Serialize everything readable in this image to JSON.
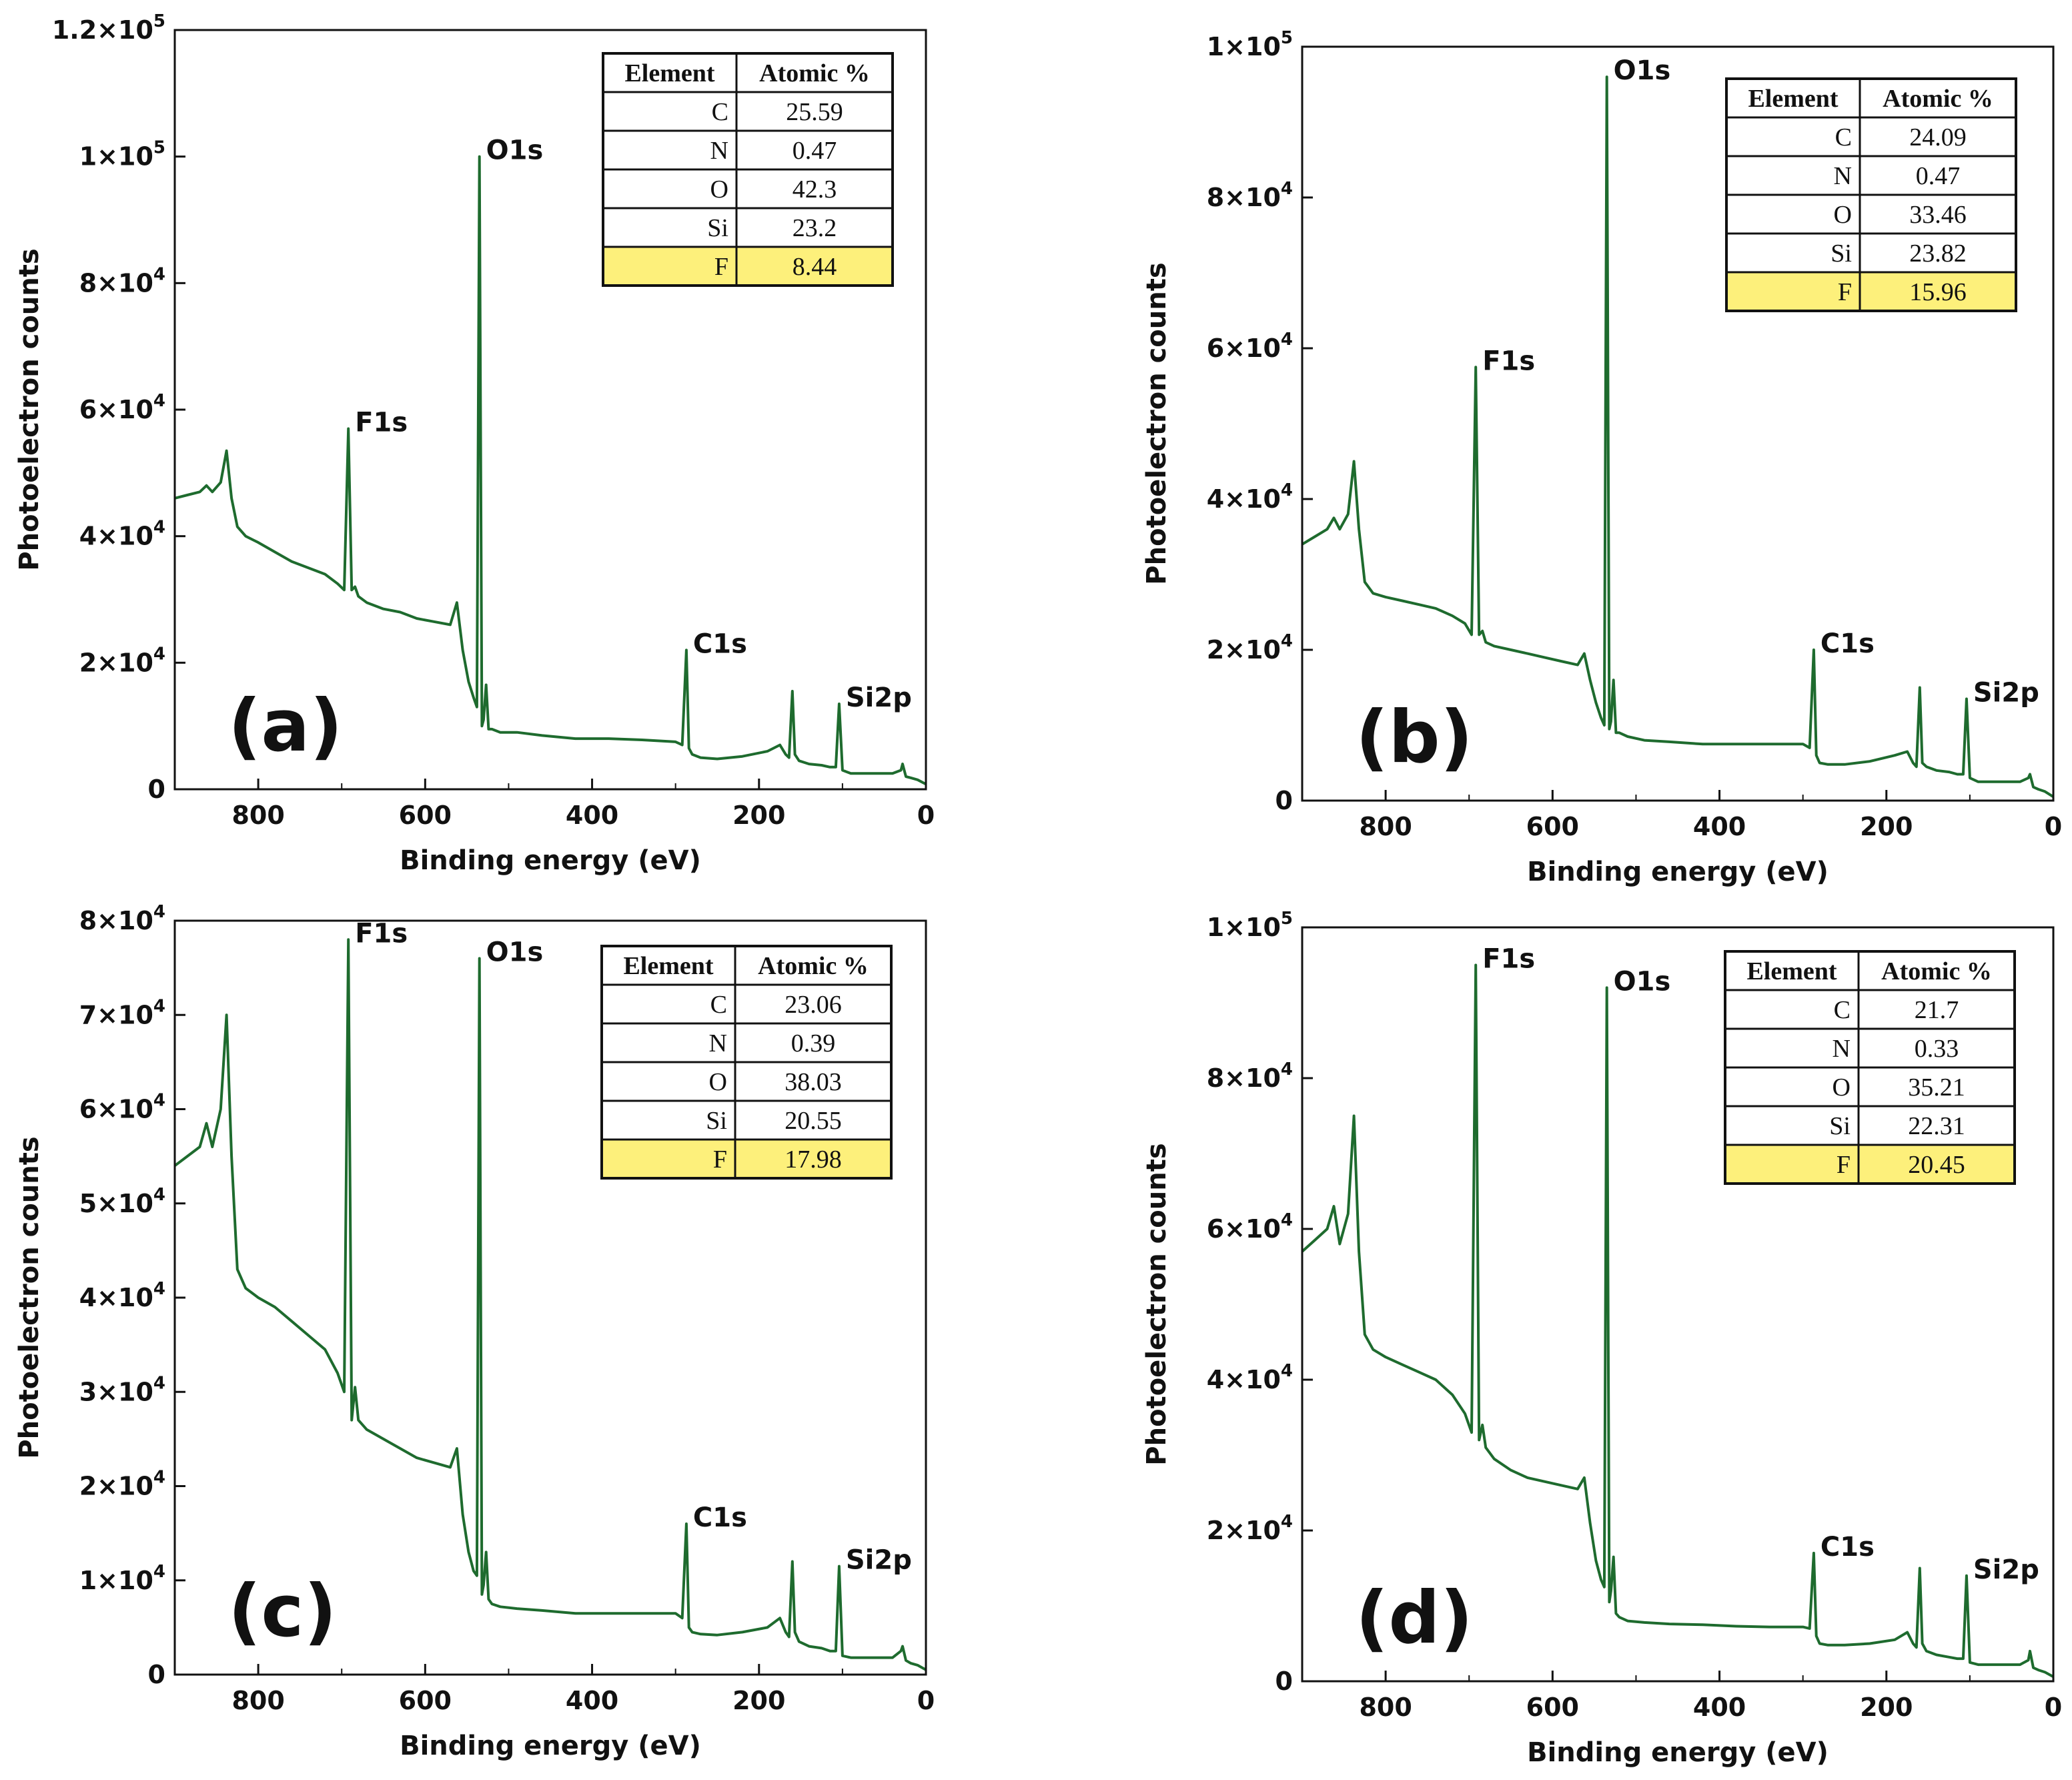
{
  "chart_data": [
    {
      "type": "line",
      "panel_label": "(a)",
      "xlabel": "Binding energy (eV)",
      "ylabel": "Photoelectron counts",
      "xlim": [
        900,
        0
      ],
      "ylim": [
        0,
        120000
      ],
      "x_ticks": [
        "800",
        "600",
        "400",
        "200",
        "0"
      ],
      "y_tick_labels": [
        {
          "mantissa": "0",
          "exp": ""
        },
        {
          "mantissa": "2×10",
          "exp": "4"
        },
        {
          "mantissa": "4×10",
          "exp": "4"
        },
        {
          "mantissa": "6×10",
          "exp": "4"
        },
        {
          "mantissa": "8×10",
          "exp": "4"
        },
        {
          "mantissa": "1×10",
          "exp": "5"
        },
        {
          "mantissa": "1.2×10",
          "exp": "5"
        }
      ],
      "y_tick_values": [
        0,
        20000,
        40000,
        60000,
        80000,
        100000,
        120000
      ],
      "line_color": "#1e6b2e",
      "series": [
        {
          "x": [
            900,
            885,
            870,
            862,
            855,
            845,
            838,
            832,
            825,
            815,
            800,
            780,
            760,
            740,
            720,
            705,
            697,
            692,
            688,
            684,
            680,
            670,
            650,
            630,
            610,
            590,
            570,
            562,
            555,
            548,
            542,
            538,
            535,
            532,
            530,
            527,
            524,
            520,
            510,
            490,
            460,
            420,
            380,
            340,
            300,
            292,
            287,
            284,
            280,
            270,
            250,
            220,
            190,
            175,
            168,
            164,
            160,
            157,
            152,
            140,
            125,
            115,
            108,
            104,
            100,
            90,
            60,
            40,
            30,
            28,
            24,
            18,
            10,
            0
          ],
          "y": [
            46000,
            46500,
            47000,
            48000,
            47000,
            48500,
            53500,
            46000,
            41500,
            40000,
            39000,
            37500,
            36000,
            35000,
            34000,
            32500,
            31500,
            57000,
            31500,
            32000,
            30500,
            29500,
            28500,
            28000,
            27000,
            26500,
            26000,
            29500,
            22000,
            17000,
            14500,
            13000,
            100000,
            10000,
            11000,
            16500,
            9500,
            9500,
            9000,
            9000,
            8500,
            8000,
            8000,
            7800,
            7500,
            7000,
            22000,
            6500,
            5500,
            5000,
            4800,
            5200,
            6000,
            7000,
            5500,
            5000,
            15500,
            5500,
            4500,
            4000,
            3800,
            3500,
            3500,
            13500,
            3000,
            2500,
            2500,
            2500,
            3000,
            4000,
            2000,
            1800,
            1500,
            800
          ]
        }
      ],
      "peak_labels": [
        {
          "text": "O1s",
          "x": 535,
          "y": 100000
        },
        {
          "text": "F1s",
          "x": 692,
          "y": 57000
        },
        {
          "text": "C1s",
          "x": 287,
          "y": 22000
        },
        {
          "text": "Si2p",
          "x": 104,
          "y": 13500
        }
      ],
      "table": {
        "headers": [
          "Element",
          "Atomic %"
        ],
        "rows": [
          [
            "C",
            "25.59"
          ],
          [
            "N",
            "0.47"
          ],
          [
            "O",
            "42.3"
          ],
          [
            "Si",
            "23.2"
          ],
          [
            "F",
            "8.44"
          ]
        ],
        "highlight_row": 4,
        "highlight_color": "#fdf07b"
      }
    },
    {
      "type": "line",
      "panel_label": "(b)",
      "xlabel": "Binding energy (eV)",
      "ylabel": "Photoelectron counts",
      "xlim": [
        900,
        0
      ],
      "ylim": [
        0,
        100000
      ],
      "x_ticks": [
        "800",
        "600",
        "400",
        "200",
        "0"
      ],
      "y_tick_labels": [
        {
          "mantissa": "0",
          "exp": ""
        },
        {
          "mantissa": "2×10",
          "exp": "4"
        },
        {
          "mantissa": "4×10",
          "exp": "4"
        },
        {
          "mantissa": "6×10",
          "exp": "4"
        },
        {
          "mantissa": "8×10",
          "exp": "4"
        },
        {
          "mantissa": "1×10",
          "exp": "5"
        }
      ],
      "y_tick_values": [
        0,
        20000,
        40000,
        60000,
        80000,
        100000
      ],
      "line_color": "#1e6b2e",
      "series": [
        {
          "x": [
            900,
            885,
            870,
            862,
            855,
            845,
            838,
            832,
            825,
            815,
            800,
            780,
            760,
            740,
            720,
            705,
            697,
            692,
            688,
            684,
            680,
            670,
            650,
            630,
            610,
            590,
            570,
            562,
            555,
            548,
            542,
            538,
            535,
            532,
            530,
            527,
            524,
            520,
            510,
            490,
            460,
            420,
            380,
            340,
            300,
            292,
            287,
            284,
            280,
            270,
            250,
            220,
            190,
            175,
            168,
            164,
            160,
            157,
            152,
            140,
            125,
            115,
            108,
            104,
            100,
            90,
            60,
            40,
            30,
            28,
            24,
            18,
            10,
            0
          ],
          "y": [
            34000,
            35000,
            36000,
            37500,
            36000,
            38000,
            45000,
            36000,
            29000,
            27500,
            27000,
            26500,
            26000,
            25500,
            24500,
            23500,
            22000,
            57500,
            22000,
            22500,
            21000,
            20500,
            20000,
            19500,
            19000,
            18500,
            18000,
            19500,
            16000,
            13000,
            11000,
            10000,
            96000,
            9500,
            10500,
            16000,
            9000,
            9000,
            8500,
            8000,
            7800,
            7500,
            7500,
            7500,
            7500,
            7000,
            20000,
            6000,
            5000,
            4800,
            4800,
            5200,
            6000,
            6500,
            5000,
            4500,
            15000,
            5000,
            4500,
            4000,
            3800,
            3500,
            3500,
            13500,
            3000,
            2500,
            2500,
            2500,
            3000,
            3500,
            1800,
            1500,
            1200,
            500
          ]
        }
      ],
      "peak_labels": [
        {
          "text": "O1s",
          "x": 535,
          "y": 96000
        },
        {
          "text": "F1s",
          "x": 692,
          "y": 57500
        },
        {
          "text": "C1s",
          "x": 287,
          "y": 20000
        },
        {
          "text": "Si2p",
          "x": 104,
          "y": 13500
        }
      ],
      "table": {
        "headers": [
          "Element",
          "Atomic %"
        ],
        "rows": [
          [
            "C",
            "24.09"
          ],
          [
            "N",
            "0.47"
          ],
          [
            "O",
            "33.46"
          ],
          [
            "Si",
            "23.82"
          ],
          [
            "F",
            "15.96"
          ]
        ],
        "highlight_row": 4,
        "highlight_color": "#fdf07b"
      }
    },
    {
      "type": "line",
      "panel_label": "(c)",
      "xlabel": "Binding energy (eV)",
      "ylabel": "Photoelectron counts",
      "xlim": [
        900,
        0
      ],
      "ylim": [
        0,
        80000
      ],
      "x_ticks": [
        "800",
        "600",
        "400",
        "200",
        "0"
      ],
      "y_tick_labels": [
        {
          "mantissa": "0",
          "exp": ""
        },
        {
          "mantissa": "1×10",
          "exp": "4"
        },
        {
          "mantissa": "2×10",
          "exp": "4"
        },
        {
          "mantissa": "3×10",
          "exp": "4"
        },
        {
          "mantissa": "4×10",
          "exp": "4"
        },
        {
          "mantissa": "5×10",
          "exp": "4"
        },
        {
          "mantissa": "6×10",
          "exp": "4"
        },
        {
          "mantissa": "7×10",
          "exp": "4"
        },
        {
          "mantissa": "8×10",
          "exp": "4"
        }
      ],
      "y_tick_values": [
        0,
        10000,
        20000,
        30000,
        40000,
        50000,
        60000,
        70000,
        80000
      ],
      "line_color": "#1e6b2e",
      "series": [
        {
          "x": [
            900,
            885,
            870,
            862,
            855,
            845,
            838,
            832,
            825,
            815,
            800,
            780,
            760,
            740,
            720,
            705,
            697,
            692,
            688,
            684,
            680,
            670,
            650,
            630,
            610,
            590,
            570,
            562,
            555,
            548,
            542,
            538,
            535,
            532,
            530,
            527,
            524,
            520,
            510,
            490,
            460,
            420,
            380,
            340,
            300,
            292,
            287,
            284,
            280,
            270,
            250,
            220,
            190,
            175,
            168,
            164,
            160,
            157,
            152,
            140,
            125,
            115,
            108,
            104,
            100,
            90,
            60,
            40,
            30,
            28,
            24,
            18,
            10,
            0
          ],
          "y": [
            54000,
            55000,
            56000,
            58500,
            56000,
            60000,
            70000,
            55000,
            43000,
            41000,
            40000,
            39000,
            37500,
            36000,
            34500,
            32000,
            30000,
            78000,
            27000,
            30500,
            27000,
            26000,
            25000,
            24000,
            23000,
            22500,
            22000,
            24000,
            17000,
            13000,
            11000,
            10500,
            76000,
            8500,
            9500,
            13000,
            8000,
            7500,
            7200,
            7000,
            6800,
            6500,
            6500,
            6500,
            6500,
            6000,
            16000,
            5000,
            4500,
            4300,
            4200,
            4500,
            5000,
            6000,
            4500,
            4000,
            12000,
            4500,
            3500,
            3000,
            2800,
            2500,
            2500,
            11500,
            2000,
            1800,
            1800,
            1800,
            2500,
            3000,
            1500,
            1200,
            1000,
            500
          ]
        }
      ],
      "peak_labels": [
        {
          "text": "F1s",
          "x": 692,
          "y": 78000
        },
        {
          "text": "O1s",
          "x": 535,
          "y": 76000
        },
        {
          "text": "C1s",
          "x": 287,
          "y": 16000
        },
        {
          "text": "Si2p",
          "x": 104,
          "y": 11500
        }
      ],
      "table": {
        "headers": [
          "Element",
          "Atomic %"
        ],
        "rows": [
          [
            "C",
            "23.06"
          ],
          [
            "N",
            "0.39"
          ],
          [
            "O",
            "38.03"
          ],
          [
            "Si",
            "20.55"
          ],
          [
            "F",
            "17.98"
          ]
        ],
        "highlight_row": 4,
        "highlight_color": "#fdf07b"
      }
    },
    {
      "type": "line",
      "panel_label": "(d)",
      "xlabel": "Binding energy (eV)",
      "ylabel": "Photoelectron counts",
      "xlim": [
        900,
        0
      ],
      "ylim": [
        0,
        100000
      ],
      "x_ticks": [
        "800",
        "600",
        "400",
        "200",
        "0"
      ],
      "y_tick_labels": [
        {
          "mantissa": "0",
          "exp": ""
        },
        {
          "mantissa": "2×10",
          "exp": "4"
        },
        {
          "mantissa": "4×10",
          "exp": "4"
        },
        {
          "mantissa": "6×10",
          "exp": "4"
        },
        {
          "mantissa": "8×10",
          "exp": "4"
        },
        {
          "mantissa": "1×10",
          "exp": "5"
        }
      ],
      "y_tick_values": [
        0,
        20000,
        40000,
        60000,
        80000,
        100000
      ],
      "line_color": "#1e6b2e",
      "series": [
        {
          "x": [
            900,
            885,
            870,
            862,
            855,
            845,
            838,
            832,
            825,
            815,
            800,
            780,
            760,
            740,
            720,
            705,
            697,
            692,
            688,
            684,
            680,
            670,
            650,
            630,
            610,
            590,
            570,
            562,
            555,
            548,
            542,
            538,
            535,
            532,
            530,
            527,
            524,
            520,
            510,
            490,
            460,
            420,
            380,
            340,
            300,
            292,
            287,
            284,
            280,
            270,
            250,
            220,
            190,
            175,
            168,
            164,
            160,
            157,
            152,
            140,
            125,
            115,
            108,
            104,
            100,
            90,
            60,
            40,
            30,
            28,
            24,
            18,
            10,
            0
          ],
          "y": [
            57000,
            58500,
            60000,
            63000,
            58000,
            62000,
            75000,
            57000,
            46000,
            44000,
            43000,
            42000,
            41000,
            40000,
            38000,
            35500,
            33000,
            95000,
            32000,
            34000,
            31000,
            29500,
            28000,
            27000,
            26500,
            26000,
            25500,
            27000,
            21000,
            16000,
            13500,
            12500,
            92000,
            10500,
            12000,
            16500,
            9000,
            8500,
            8000,
            7800,
            7600,
            7500,
            7300,
            7200,
            7200,
            7000,
            17000,
            6000,
            5000,
            4800,
            4800,
            5000,
            5500,
            6500,
            5000,
            4500,
            15000,
            5000,
            4000,
            3500,
            3200,
            3000,
            3000,
            14000,
            2500,
            2200,
            2200,
            2200,
            2800,
            4000,
            1800,
            1500,
            1200,
            600
          ]
        }
      ],
      "peak_labels": [
        {
          "text": "F1s",
          "x": 692,
          "y": 95000
        },
        {
          "text": "O1s",
          "x": 535,
          "y": 92000
        },
        {
          "text": "C1s",
          "x": 287,
          "y": 17000
        },
        {
          "text": "Si2p",
          "x": 104,
          "y": 14000
        }
      ],
      "table": {
        "headers": [
          "Element",
          "Atomic %"
        ],
        "rows": [
          [
            "C",
            "21.7"
          ],
          [
            "N",
            "0.33"
          ],
          [
            "O",
            "35.21"
          ],
          [
            "Si",
            "22.31"
          ],
          [
            "F",
            "20.45"
          ]
        ],
        "highlight_row": 4,
        "highlight_color": "#fdf07b"
      }
    }
  ]
}
